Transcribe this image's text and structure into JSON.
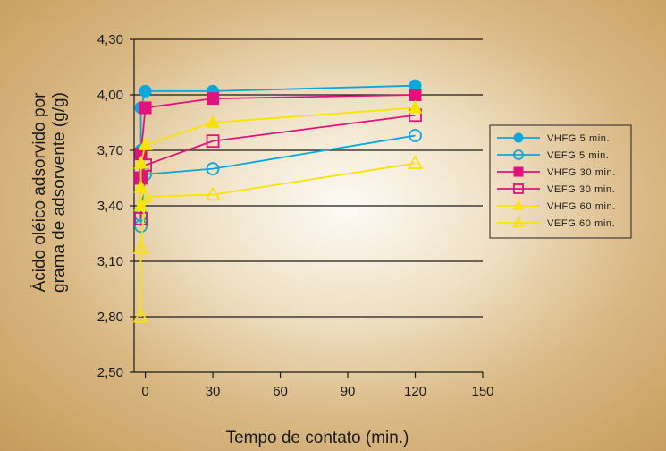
{
  "chart_data": {
    "type": "line",
    "xlabel": "Tempo de contato (min.)",
    "ylabel_lines": [
      "Ácido oléico adsorvido por",
      "grama de adsorvente (g/g)"
    ],
    "xlim": [
      -5,
      150
    ],
    "ylim": [
      2.5,
      4.3
    ],
    "x_ticks": [
      0,
      30,
      60,
      90,
      120,
      150
    ],
    "x_tick_labels": [
      "0",
      "30",
      "60",
      "90",
      "120",
      "150"
    ],
    "y_ticks": [
      2.5,
      2.8,
      3.1,
      3.4,
      3.7,
      4.0,
      4.3
    ],
    "y_tick_labels": [
      "2,50",
      "2,80",
      "3,10",
      "3,40",
      "3,70",
      "4,00",
      "4,30"
    ],
    "grid": "horizontal",
    "legend_position": "right",
    "series": [
      {
        "name": "VHFG 5 min.",
        "color": "#0aa6dc",
        "marker": "circle",
        "filled": true,
        "x": [
          -2,
          -2,
          0,
          30,
          120
        ],
        "y": [
          3.7,
          3.93,
          4.02,
          4.02,
          4.05
        ]
      },
      {
        "name": "VEFG 5 min.",
        "color": "#0aa6dc",
        "marker": "circle",
        "filled": false,
        "x": [
          -2,
          -2,
          0,
          30,
          120
        ],
        "y": [
          3.29,
          3.35,
          3.57,
          3.6,
          3.78
        ]
      },
      {
        "name": "VHFG 30 min.",
        "color": "#e0137e",
        "marker": "square",
        "filled": true,
        "x": [
          -2,
          -2,
          0,
          30,
          120
        ],
        "y": [
          3.55,
          3.68,
          3.93,
          3.98,
          4.0
        ]
      },
      {
        "name": "VEFG 30 min.",
        "color": "#e0137e",
        "marker": "square",
        "filled": false,
        "x": [
          -2,
          -2,
          0,
          30,
          120
        ],
        "y": [
          3.33,
          3.55,
          3.62,
          3.75,
          3.89
        ]
      },
      {
        "name": "VHFG 60 min.",
        "color": "#f7e400",
        "marker": "triangle",
        "filled": true,
        "x": [
          -2,
          -2,
          -2,
          0,
          30,
          120
        ],
        "y": [
          3.4,
          3.5,
          3.63,
          3.73,
          3.85,
          3.93
        ]
      },
      {
        "name": "VEFG 60 min.",
        "color": "#f7e400",
        "marker": "triangle",
        "filled": false,
        "x": [
          -2,
          -2,
          0,
          30,
          120
        ],
        "y": [
          2.8,
          3.17,
          3.45,
          3.46,
          3.63
        ]
      }
    ]
  }
}
